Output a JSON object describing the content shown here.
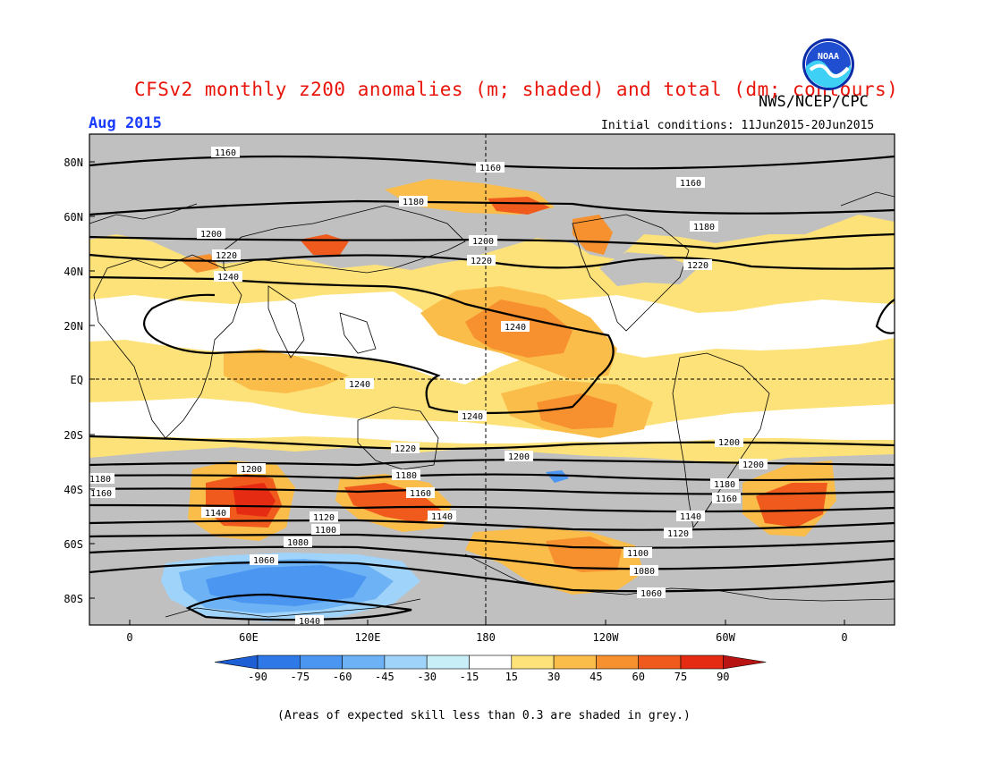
{
  "title": "CFSv2 monthly z200 anomalies (m; shaded) and total (dm; contours)",
  "agency": "NWS/NCEP/CPC",
  "month": "Aug 2015",
  "initial_conditions": "Initial conditions: 11Jun2015-20Jun2015",
  "footnote": "(Areas of expected skill less than 0.3 are shaded in grey.)",
  "logo_text": "NOAA",
  "axes": {
    "lat_labels": [
      "80N",
      "60N",
      "40N",
      "20N",
      "EQ",
      "20S",
      "40S",
      "60S",
      "80S"
    ],
    "lon_labels": [
      "0",
      "60E",
      "120E",
      "180",
      "120W",
      "60W",
      "0"
    ]
  },
  "colorbar": {
    "levels": [
      "-90",
      "-75",
      "-60",
      "-45",
      "-30",
      "-15",
      "15",
      "30",
      "45",
      "60",
      "75",
      "90"
    ],
    "colors": [
      "#1f5fd6",
      "#2e78e8",
      "#4a96f0",
      "#6cb2f5",
      "#9fd3fa",
      "#c8eef8",
      "#ffffff",
      "#fde27a",
      "#fbbd4a",
      "#f7902e",
      "#f05a1c",
      "#e52b12",
      "#b81414"
    ]
  },
  "colors": {
    "skill_grey": "#c0c0c0",
    "title_red": "#e8140a",
    "month_blue": "#1a3cff"
  },
  "contour_labels": [
    "1160",
    "1160",
    "1160",
    "1180",
    "1180",
    "1200",
    "1200",
    "1200",
    "1220",
    "1220",
    "1220",
    "1240",
    "1240",
    "1240",
    "1240",
    "1220",
    "1200",
    "1200",
    "1200",
    "1180",
    "1180",
    "1180",
    "1160",
    "1160",
    "1160",
    "1140",
    "1140",
    "1140",
    "1120",
    "1120",
    "1100",
    "1100",
    "1080",
    "1080",
    "1060",
    "1060",
    "1040"
  ]
}
